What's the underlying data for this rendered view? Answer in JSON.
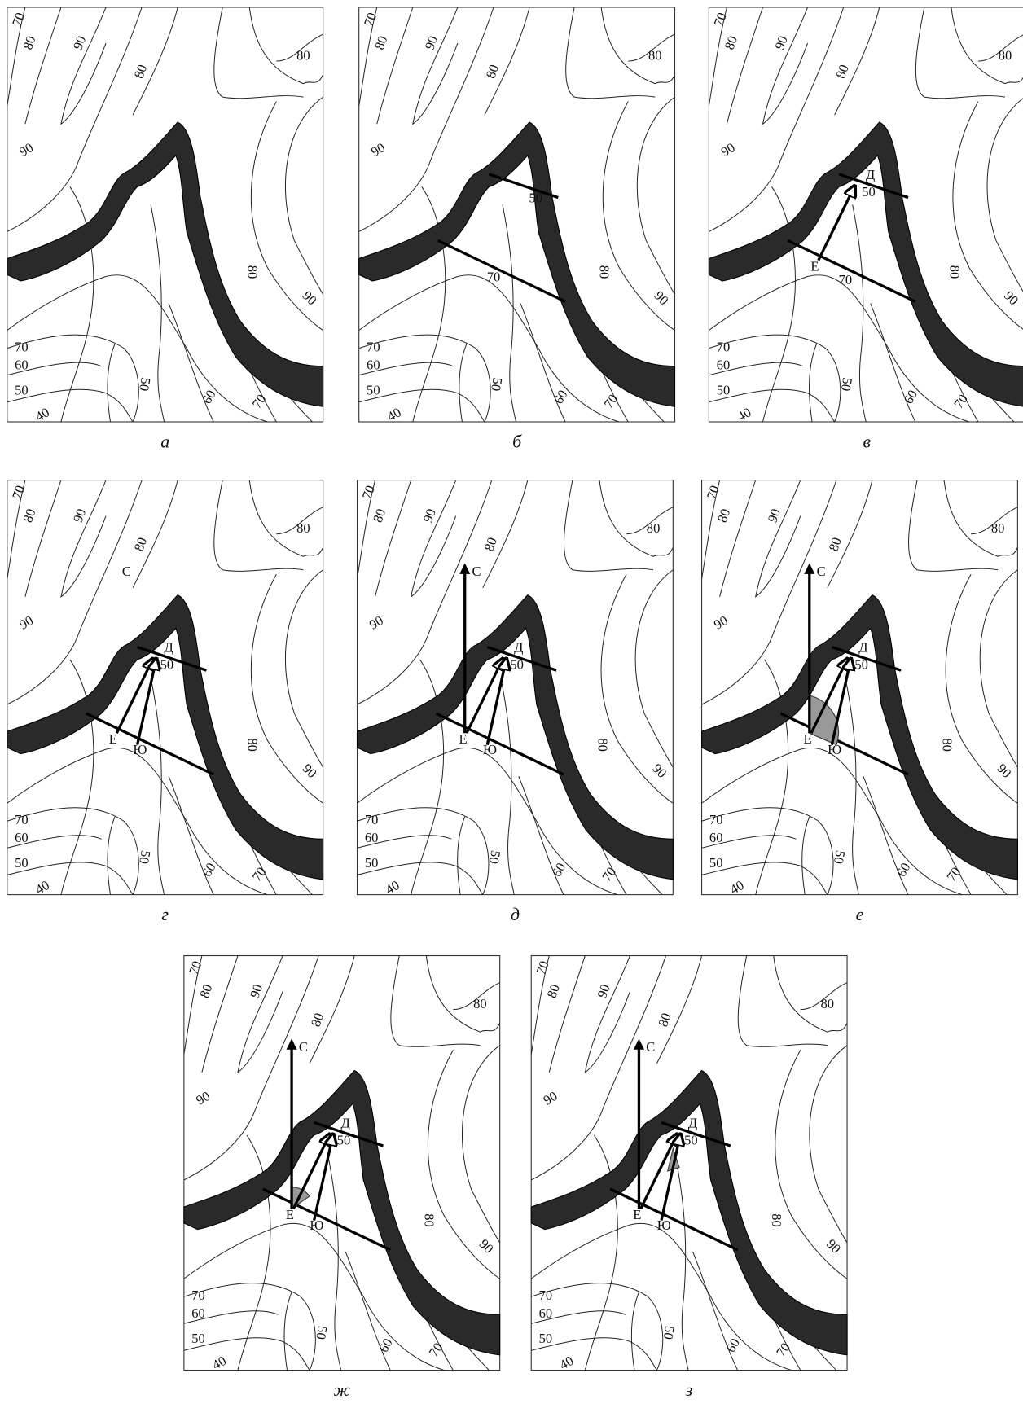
{
  "figure": {
    "contour_labels": [
      "70",
      "80",
      "90",
      "80",
      "80",
      "90",
      "80",
      "90",
      "70",
      "60",
      "50",
      "40",
      "50",
      "60",
      "70"
    ],
    "panels": [
      {
        "caption": "а",
        "labels": []
      },
      {
        "caption": "б",
        "labels": [
          "50",
          "70"
        ]
      },
      {
        "caption": "в",
        "labels": [
          "Д",
          "50",
          "Е",
          "70"
        ]
      },
      {
        "caption": "г",
        "labels": [
          "С",
          "Д",
          "50",
          "Е",
          "Ю"
        ]
      },
      {
        "caption": "д",
        "labels": [
          "С",
          "Д",
          "50",
          "Е",
          "Ю"
        ]
      },
      {
        "caption": "е",
        "labels": [
          "С",
          "Д",
          "50",
          "Е",
          "Ю"
        ]
      },
      {
        "caption": "ж",
        "labels": [
          "С",
          "Д",
          "50",
          "Е",
          "Ю"
        ]
      },
      {
        "caption": "з",
        "labels": [
          "С",
          "Д",
          "50",
          "Е",
          "Ю"
        ]
      }
    ]
  }
}
